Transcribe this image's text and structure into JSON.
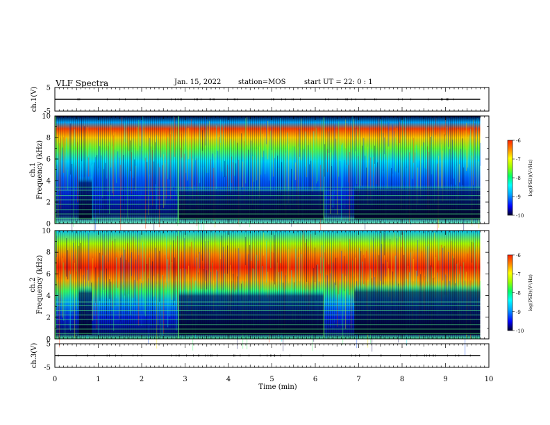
{
  "header": {
    "title": "VLF Spectra",
    "date": "Jan. 15, 2022",
    "station": "station=MOS",
    "start": "start UT =  22: 0  : 1"
  },
  "colors": {
    "background": "#ffffff",
    "colormap": [
      "#00002a",
      "#0000ff",
      "#00aaff",
      "#00ffff",
      "#00ff66",
      "#99ff00",
      "#ffff00",
      "#ff8800",
      "#ff2200"
    ]
  },
  "chart_data": [
    {
      "type": "line",
      "ylabel": "ch.1(V)",
      "ylim": [
        -5,
        5
      ],
      "yticks": [
        5,
        -5
      ],
      "xlim": [
        0,
        10
      ],
      "series": [
        {
          "values_description_free": true,
          "x": [
            0,
            9.8
          ],
          "values": [
            0,
            0
          ]
        }
      ]
    },
    {
      "type": "heatmap",
      "ylabel": "ch.1\nFrequency (kHz)",
      "ylabel_line1": "ch.1",
      "ylabel_line2": "Frequency (kHz)",
      "ylim": [
        0,
        10
      ],
      "yticks": [
        0,
        2,
        4,
        6,
        8,
        10
      ],
      "xlim": [
        0,
        10
      ],
      "data_extent_x": [
        0,
        9.8
      ],
      "colorbar": {
        "label": "log(PSD)(V²/Hz)",
        "range": [
          -10,
          -6
        ],
        "ticks": [
          "-6",
          "-7",
          "-8",
          "-9",
          "-10"
        ]
      }
    },
    {
      "type": "heatmap",
      "ylabel": "ch.2\nFrequency (kHz)",
      "ylabel_line1": "ch.2",
      "ylabel_line2": "Frequency (kHz)",
      "ylim": [
        0,
        10
      ],
      "yticks": [
        0,
        2,
        4,
        6,
        8,
        10
      ],
      "xlim": [
        0,
        10
      ],
      "data_extent_x": [
        0,
        9.8
      ],
      "colorbar": {
        "label": "log(PSD)(V²/Hz)",
        "range": [
          -10,
          -6
        ],
        "ticks": [
          "-6",
          "-7",
          "-8",
          "-9",
          "-10"
        ]
      }
    },
    {
      "type": "line",
      "ylabel": "ch.3(V)",
      "ylim": [
        -5,
        5
      ],
      "yticks": [
        5,
        -5
      ],
      "xlim": [
        0,
        10
      ],
      "xlabel": "Time (min)",
      "xticks": [
        "0",
        "1",
        "2",
        "3",
        "4",
        "5",
        "6",
        "7",
        "8",
        "9",
        "10"
      ],
      "series": [
        {
          "x": [
            0,
            9.8
          ],
          "values": [
            0,
            0
          ]
        }
      ]
    }
  ]
}
